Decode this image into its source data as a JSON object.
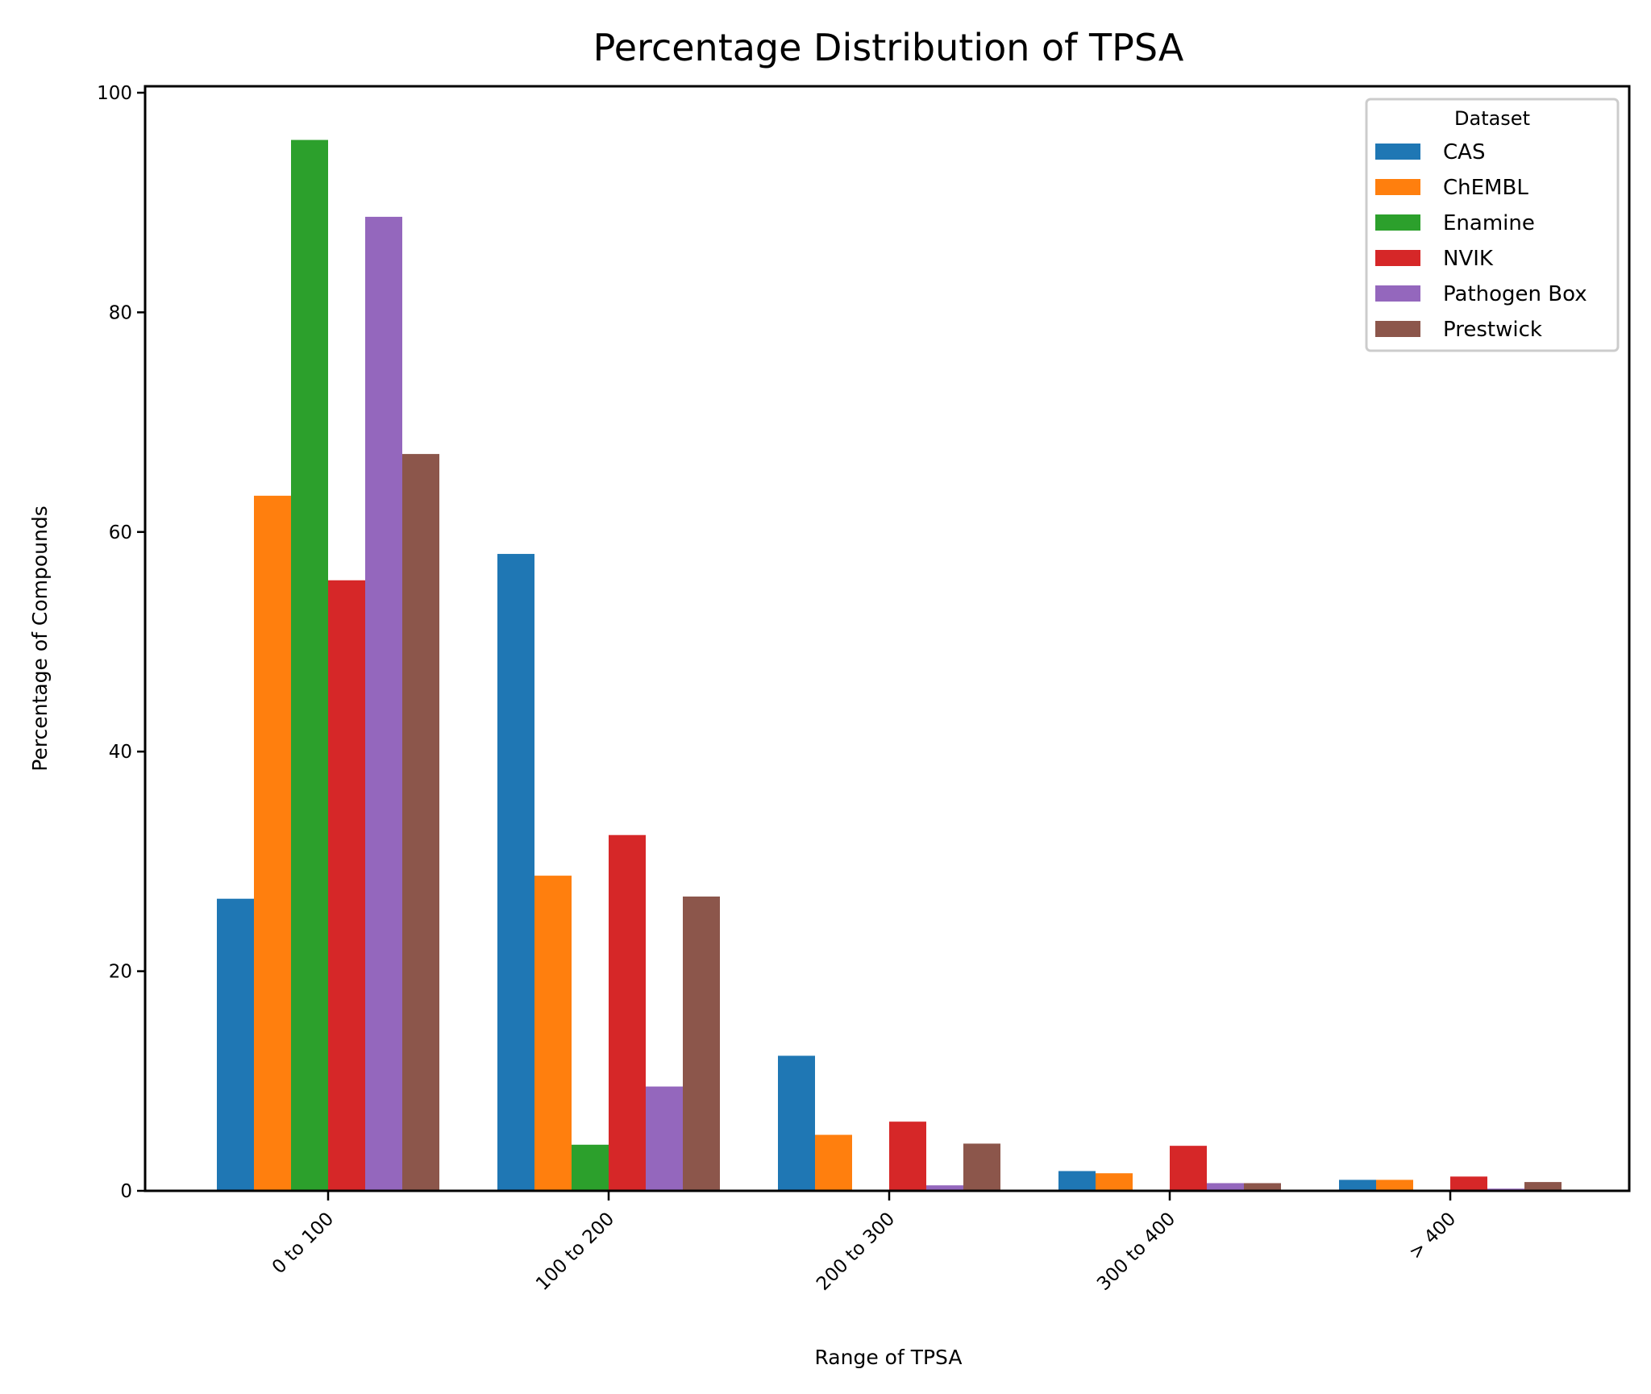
{
  "chart_data": {
    "type": "bar",
    "title": "Percentage Distribution of TPSA",
    "xlabel": "Range of TPSA",
    "ylabel": "Percentage of Compounds",
    "ylim": [
      0,
      100
    ],
    "yticks": [
      0,
      20,
      40,
      60,
      80,
      100
    ],
    "categories": [
      "0 to 100",
      "100 to 200",
      "200 to 300",
      "300 to 400",
      "> 400"
    ],
    "legend": {
      "title": "Dataset",
      "position": "top-right"
    },
    "grid": false,
    "series": [
      {
        "name": "CAS",
        "color": "#1f77b4",
        "values": [
          26.6,
          58.0,
          12.3,
          1.8,
          1.0
        ]
      },
      {
        "name": "ChEMBL",
        "color": "#ff7f0e",
        "values": [
          63.3,
          28.7,
          5.1,
          1.6,
          1.0
        ]
      },
      {
        "name": "Enamine",
        "color": "#2ca02c",
        "values": [
          95.7,
          4.2,
          0.0,
          0.0,
          0.0
        ]
      },
      {
        "name": "NVIK",
        "color": "#d62728",
        "values": [
          55.6,
          32.4,
          6.3,
          4.1,
          1.3
        ]
      },
      {
        "name": "Pathogen Box",
        "color": "#9467bd",
        "values": [
          88.7,
          9.5,
          0.5,
          0.7,
          0.2
        ]
      },
      {
        "name": "Prestwick",
        "color": "#8c564b",
        "values": [
          67.1,
          26.8,
          4.3,
          0.7,
          0.8
        ]
      }
    ]
  }
}
